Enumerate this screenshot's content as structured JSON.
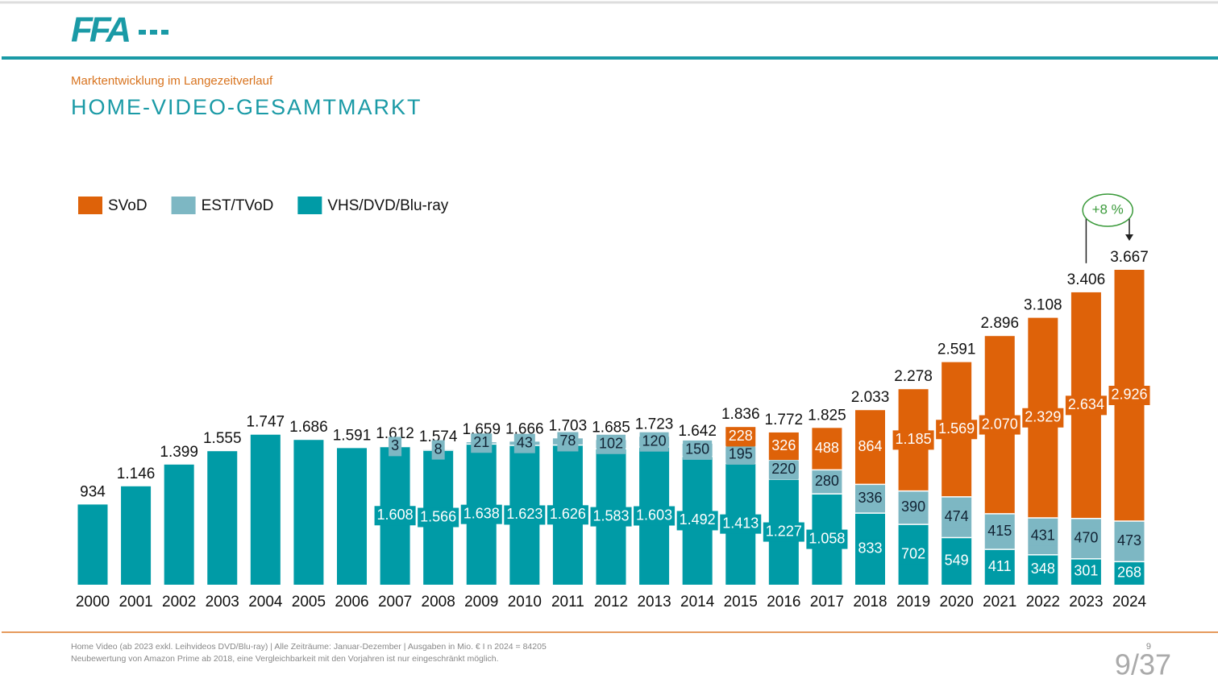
{
  "header": {
    "logo": "FFA",
    "subtitle": "Marktentwicklung im Langezeitverlauf",
    "title": "HOME-VIDEO-GESAMTMARKT"
  },
  "chart_data": {
    "type": "stacked-bar",
    "categories": [
      "2000",
      "2001",
      "2002",
      "2003",
      "2004",
      "2005",
      "2006",
      "2007",
      "2008",
      "2009",
      "2010",
      "2011",
      "2012",
      "2013",
      "2014",
      "2015",
      "2016",
      "2017",
      "2018",
      "2019",
      "2020",
      "2021",
      "2022",
      "2023",
      "2024"
    ],
    "series": [
      {
        "name": "VHS/DVD/Blu-ray",
        "color": "#009ba6",
        "values": [
          934,
          1146,
          1399,
          1555,
          1747,
          1686,
          1591,
          1608,
          1566,
          1638,
          1623,
          1626,
          1583,
          1603,
          1492,
          1413,
          1227,
          1058,
          833,
          702,
          549,
          411,
          348,
          301,
          268
        ],
        "value_labels": [
          null,
          null,
          null,
          null,
          null,
          null,
          null,
          "1.608",
          "1.566",
          "1.638",
          "1.623",
          "1.626",
          "1.583",
          "1.603",
          "1.492",
          "1.413",
          "1.227",
          "1.058",
          "833",
          "702",
          "549",
          "411",
          "348",
          "301",
          "268"
        ]
      },
      {
        "name": "EST/TVoD",
        "color": "#7db7c3",
        "values": [
          null,
          null,
          null,
          null,
          null,
          null,
          null,
          3,
          8,
          21,
          43,
          78,
          102,
          120,
          150,
          195,
          220,
          280,
          336,
          390,
          474,
          415,
          431,
          470,
          473
        ],
        "value_labels": [
          null,
          null,
          null,
          null,
          null,
          null,
          null,
          "3",
          "8",
          "21",
          "43",
          "78",
          "102",
          "120",
          "150",
          "195",
          "220",
          "280",
          "336",
          "390",
          "474",
          "415",
          "431",
          "470",
          "473"
        ]
      },
      {
        "name": "SVoD",
        "color": "#de6209",
        "values": [
          null,
          null,
          null,
          null,
          null,
          null,
          null,
          null,
          null,
          null,
          null,
          null,
          null,
          null,
          null,
          228,
          326,
          488,
          864,
          1185,
          1569,
          2070,
          2329,
          2634,
          2926
        ],
        "value_labels": [
          null,
          null,
          null,
          null,
          null,
          null,
          null,
          null,
          null,
          null,
          null,
          null,
          null,
          null,
          null,
          "228",
          "326",
          "488",
          "864",
          "1.185",
          "1.569",
          "2.070",
          "2.329",
          "2.634",
          "2.926"
        ]
      }
    ],
    "totals": {
      "values": [
        934,
        1146,
        1399,
        1555,
        1747,
        1686,
        1591,
        1612,
        1574,
        1659,
        1666,
        1703,
        1685,
        1723,
        1642,
        1836,
        1772,
        1825,
        2033,
        2278,
        2591,
        2896,
        3108,
        3406,
        3667
      ],
      "value_labels": [
        "934",
        "1.146",
        "1.399",
        "1.555",
        "1.747",
        "1.686",
        "1.591",
        "1.612",
        "1.574",
        "1.659",
        "1.666",
        "1.703",
        "1.685",
        "1.723",
        "1.642",
        "1.836",
        "1.772",
        "1.825",
        "2.033",
        "2.278",
        "2.591",
        "2.896",
        "3.108",
        "3.406",
        "3.667"
      ]
    },
    "annotation": "+8 %"
  },
  "footer": {
    "notes": [
      "Home Video (ab 2023 exkl. Leihvideos DVD/Blu-ray) | Alle Zeiträume: Januar-Dezember | Ausgaben in Mio. € I  n 2024 = 84205",
      "Neubewertung von Amazon Prime ab 2018, eine Vergleichbarkeit mit den Vorjahren ist nur eingeschränkt möglich."
    ],
    "page": "9",
    "pager": "9/37"
  }
}
